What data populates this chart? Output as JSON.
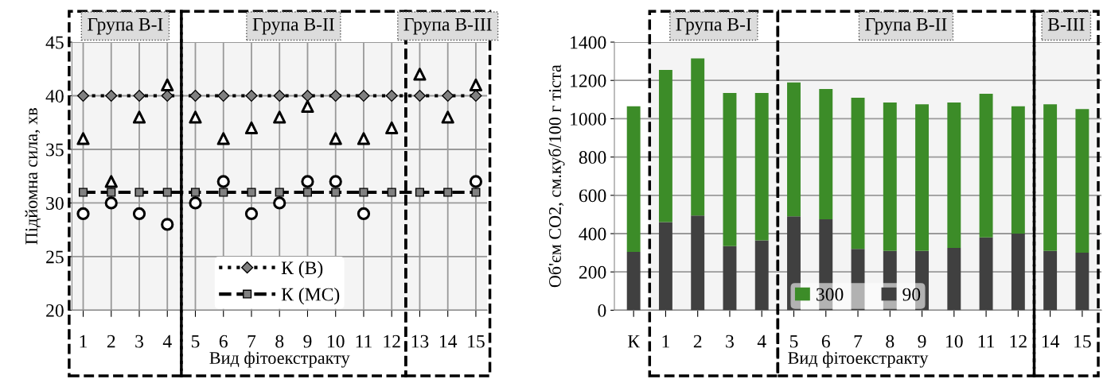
{
  "chart_data": [
    {
      "type": "line",
      "xlabel": "Вид фітоекстракту",
      "ylabel": "Підйомна сила, хв",
      "categories": [
        "1",
        "2",
        "3",
        "4",
        "5",
        "6",
        "7",
        "8",
        "9",
        "10",
        "11",
        "12",
        "13",
        "14",
        "15"
      ],
      "ylim": [
        20,
        45
      ],
      "yticks": [
        20,
        25,
        30,
        35,
        40,
        45
      ],
      "grid": true,
      "legend": "bottom",
      "series": [
        {
          "name": "К (В)",
          "type": "line",
          "color": "#000000",
          "marker": "diamond",
          "line_style": "dotted",
          "values": [
            40,
            40,
            40,
            40,
            40,
            40,
            40,
            40,
            40,
            40,
            40,
            40,
            40,
            40,
            40
          ]
        },
        {
          "name": "К (МС)",
          "type": "line",
          "color": "#000000",
          "marker": "square",
          "line_style": "dashed",
          "values": [
            31,
            31,
            31,
            31,
            31,
            31,
            31,
            31,
            31,
            31,
            31,
            31,
            31,
            31,
            31
          ]
        },
        {
          "type": "scatter",
          "color": "#000000",
          "marker": "triangle",
          "values": [
            36,
            32,
            38,
            41,
            38,
            36,
            37,
            38,
            39,
            36,
            36,
            37,
            42,
            38,
            41
          ]
        },
        {
          "type": "scatter",
          "color": "#000000",
          "marker": "circle",
          "values": [
            29,
            30,
            29,
            28,
            30,
            32,
            29,
            30,
            32,
            32,
            29,
            null,
            null,
            null,
            32
          ]
        }
      ],
      "bands": [
        {
          "axis": "x",
          "from": "1",
          "to": "4",
          "label": "Група В-І",
          "color": "#f4f4f4"
        },
        {
          "axis": "x",
          "from": "5",
          "to": "12",
          "label": "Група В-ІІ",
          "color": "#f4f4f4"
        },
        {
          "axis": "x",
          "from": "13",
          "to": "15",
          "label": "Група В-ІІІ",
          "color": "#f4f4f4"
        }
      ]
    },
    {
      "type": "bar",
      "stacked": true,
      "xlabel": "Вид фітоекстракту",
      "ylabel": "Об'єм CO2, см.куб/100 г тіста",
      "categories": [
        "К",
        "1",
        "2",
        "3",
        "4",
        "5",
        "6",
        "7",
        "8",
        "9",
        "10",
        "11",
        "12",
        "14",
        "15"
      ],
      "ylim": [
        0,
        1400
      ],
      "yticks": [
        0,
        200,
        400,
        600,
        800,
        1000,
        1200,
        1400
      ],
      "grid": "y",
      "legend": "bottom",
      "series": [
        {
          "name": "90",
          "color": "#404040",
          "values": [
            305,
            460,
            495,
            335,
            365,
            490,
            475,
            320,
            310,
            310,
            325,
            380,
            400,
            310,
            300
          ]
        },
        {
          "name": "300",
          "color": "#3c8c28",
          "values": [
            760,
            795,
            820,
            800,
            770,
            700,
            680,
            790,
            775,
            765,
            760,
            750,
            665,
            765,
            750
          ]
        }
      ],
      "bands": [
        {
          "axis": "x",
          "from": "1",
          "to": "4",
          "label": "Група В-І",
          "color": "#f4f4f4"
        },
        {
          "axis": "x",
          "from": "5",
          "to": "12",
          "label": "Група В-ІІ",
          "color": "#f4f4f4"
        },
        {
          "axis": "x",
          "from": "14",
          "to": "15",
          "label": "В-ІІІ",
          "color": "#f4f4f4"
        }
      ]
    }
  ]
}
